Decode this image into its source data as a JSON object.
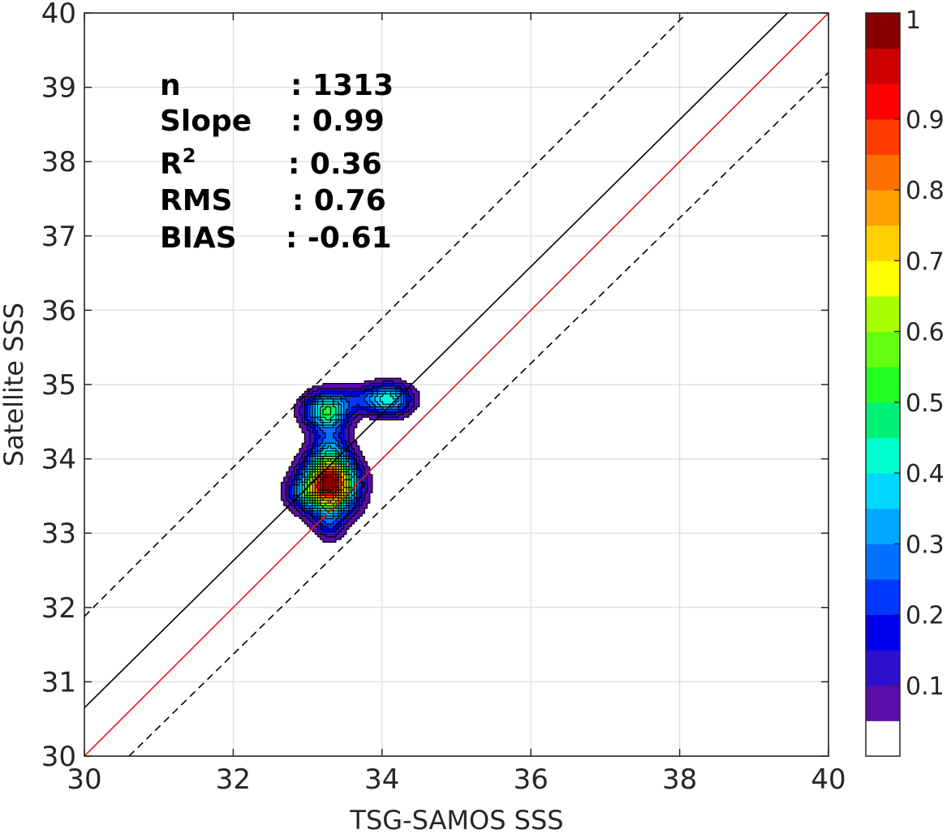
{
  "chart_data": {
    "type": "heatmap",
    "subtype": "density-contour",
    "xlabel": "TSG-SAMOS SSS",
    "ylabel": "Satellite SSS",
    "xlim": [
      30,
      40
    ],
    "ylim": [
      30,
      40
    ],
    "x_ticks": [
      "30",
      "32",
      "34",
      "36",
      "38",
      "40"
    ],
    "y_ticks": [
      "30",
      "31",
      "32",
      "33",
      "34",
      "35",
      "36",
      "37",
      "38",
      "39",
      "40"
    ],
    "grid": true,
    "stats": [
      {
        "label": "n",
        "value": ": 1313"
      },
      {
        "label": "Slope",
        "value": ": 0.99"
      },
      {
        "label": "R",
        "sup": "2",
        "value": ": 0.36"
      },
      {
        "label": "RMS",
        "value": ": 0.76"
      },
      {
        "label": "BIAS",
        "value": ": -0.61"
      }
    ],
    "lines": [
      {
        "kind": "one-to-one",
        "color": "#e41a1c",
        "style": "solid",
        "points": [
          [
            30,
            30
          ],
          [
            40,
            40
          ]
        ]
      },
      {
        "kind": "fit",
        "color": "#000000",
        "style": "solid",
        "points": [
          [
            30,
            30.65
          ],
          [
            39.45,
            40
          ]
        ]
      },
      {
        "kind": "upper-bound",
        "color": "#000000",
        "style": "dashed",
        "points": [
          [
            30,
            31.88
          ],
          [
            38.1,
            40
          ]
        ]
      },
      {
        "kind": "lower-bound",
        "color": "#000000",
        "style": "dashed",
        "points": [
          [
            30.6,
            30
          ],
          [
            40,
            39.2
          ]
        ]
      }
    ],
    "density_peaks": [
      {
        "x": 33.3,
        "y": 33.65,
        "value": 1.0
      },
      {
        "x": 33.25,
        "y": 34.65,
        "value": 0.45
      },
      {
        "x": 34.1,
        "y": 34.8,
        "value": 0.4
      }
    ],
    "colorbar": {
      "range": [
        0,
        1
      ],
      "levels": 20,
      "ticks": [
        "0.1",
        "0.2",
        "0.3",
        "0.4",
        "0.5",
        "0.6",
        "0.7",
        "0.8",
        "0.9",
        "1"
      ],
      "colors": [
        "#ffffff",
        "#5b0da8",
        "#2c10cc",
        "#0000ee",
        "#0038ff",
        "#0072ff",
        "#00a8ff",
        "#00d8ff",
        "#00ffd0",
        "#00f078",
        "#22ff22",
        "#66ff11",
        "#a8ff00",
        "#ffff00",
        "#ffd000",
        "#ffa000",
        "#ff7000",
        "#ff3c00",
        "#ff0000",
        "#cc0000",
        "#880000"
      ]
    }
  }
}
